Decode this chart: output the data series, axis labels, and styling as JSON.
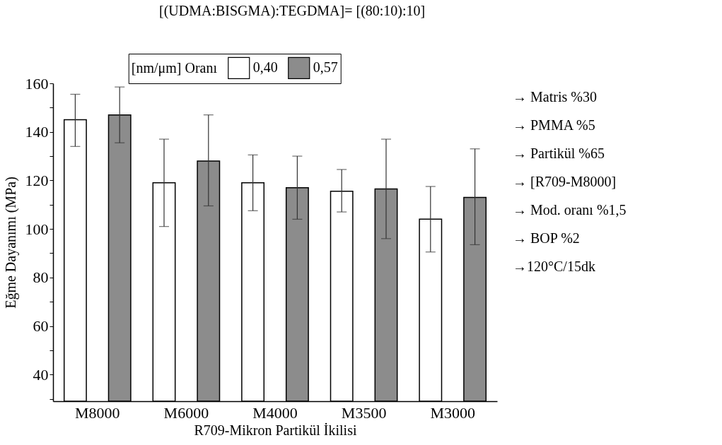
{
  "chart_data": {
    "type": "bar",
    "title": "[(UDMA:BISGMA):TEGDMA]= [(80:10):10]",
    "xlabel": "R709-Mikron Partikül İkilisi",
    "ylabel": "Eğme Dayanımı (MPa)",
    "legend_title": "[nm/μm] Oranı",
    "legend": "top",
    "categories": [
      "M8000",
      "M6000",
      "M4000",
      "M3500",
      "M3000"
    ],
    "series": [
      {
        "name": "0,40",
        "color": "#ffffff",
        "values": [
          145,
          119,
          119,
          115.5,
          104
        ],
        "errors": [
          [
            134,
            155.5
          ],
          [
            101,
            137
          ],
          [
            107.5,
            130.5
          ],
          [
            107,
            124.5
          ],
          [
            90.5,
            117.5
          ]
        ]
      },
      {
        "name": "0,57",
        "color": "#8c8c8c",
        "values": [
          147,
          128,
          117,
          116.5,
          113
        ],
        "errors": [
          [
            135.5,
            158.5
          ],
          [
            109.5,
            147
          ],
          [
            104,
            130
          ],
          [
            96,
            137
          ],
          [
            93.5,
            133
          ]
        ]
      }
    ],
    "ylim": [
      29,
      160
    ],
    "yticks": [
      {
        "value": 30,
        "label": null
      },
      40,
      {
        "value": 50,
        "label": null
      },
      60,
      {
        "value": 70,
        "label": null
      },
      80,
      {
        "value": 90,
        "label": null
      },
      100,
      {
        "value": 110,
        "label": null
      },
      120,
      {
        "value": 130,
        "label": null
      },
      140,
      {
        "value": 150,
        "label": null
      },
      160
    ],
    "grid": false,
    "annotations": [
      "→ Matris %30",
      "→ PMMA %5",
      "→ Partikül %65",
      "→ [R709-M8000]",
      "→ Mod. oranı %1,5",
      "→ BOP %2",
      "→120°C/15dk"
    ]
  }
}
